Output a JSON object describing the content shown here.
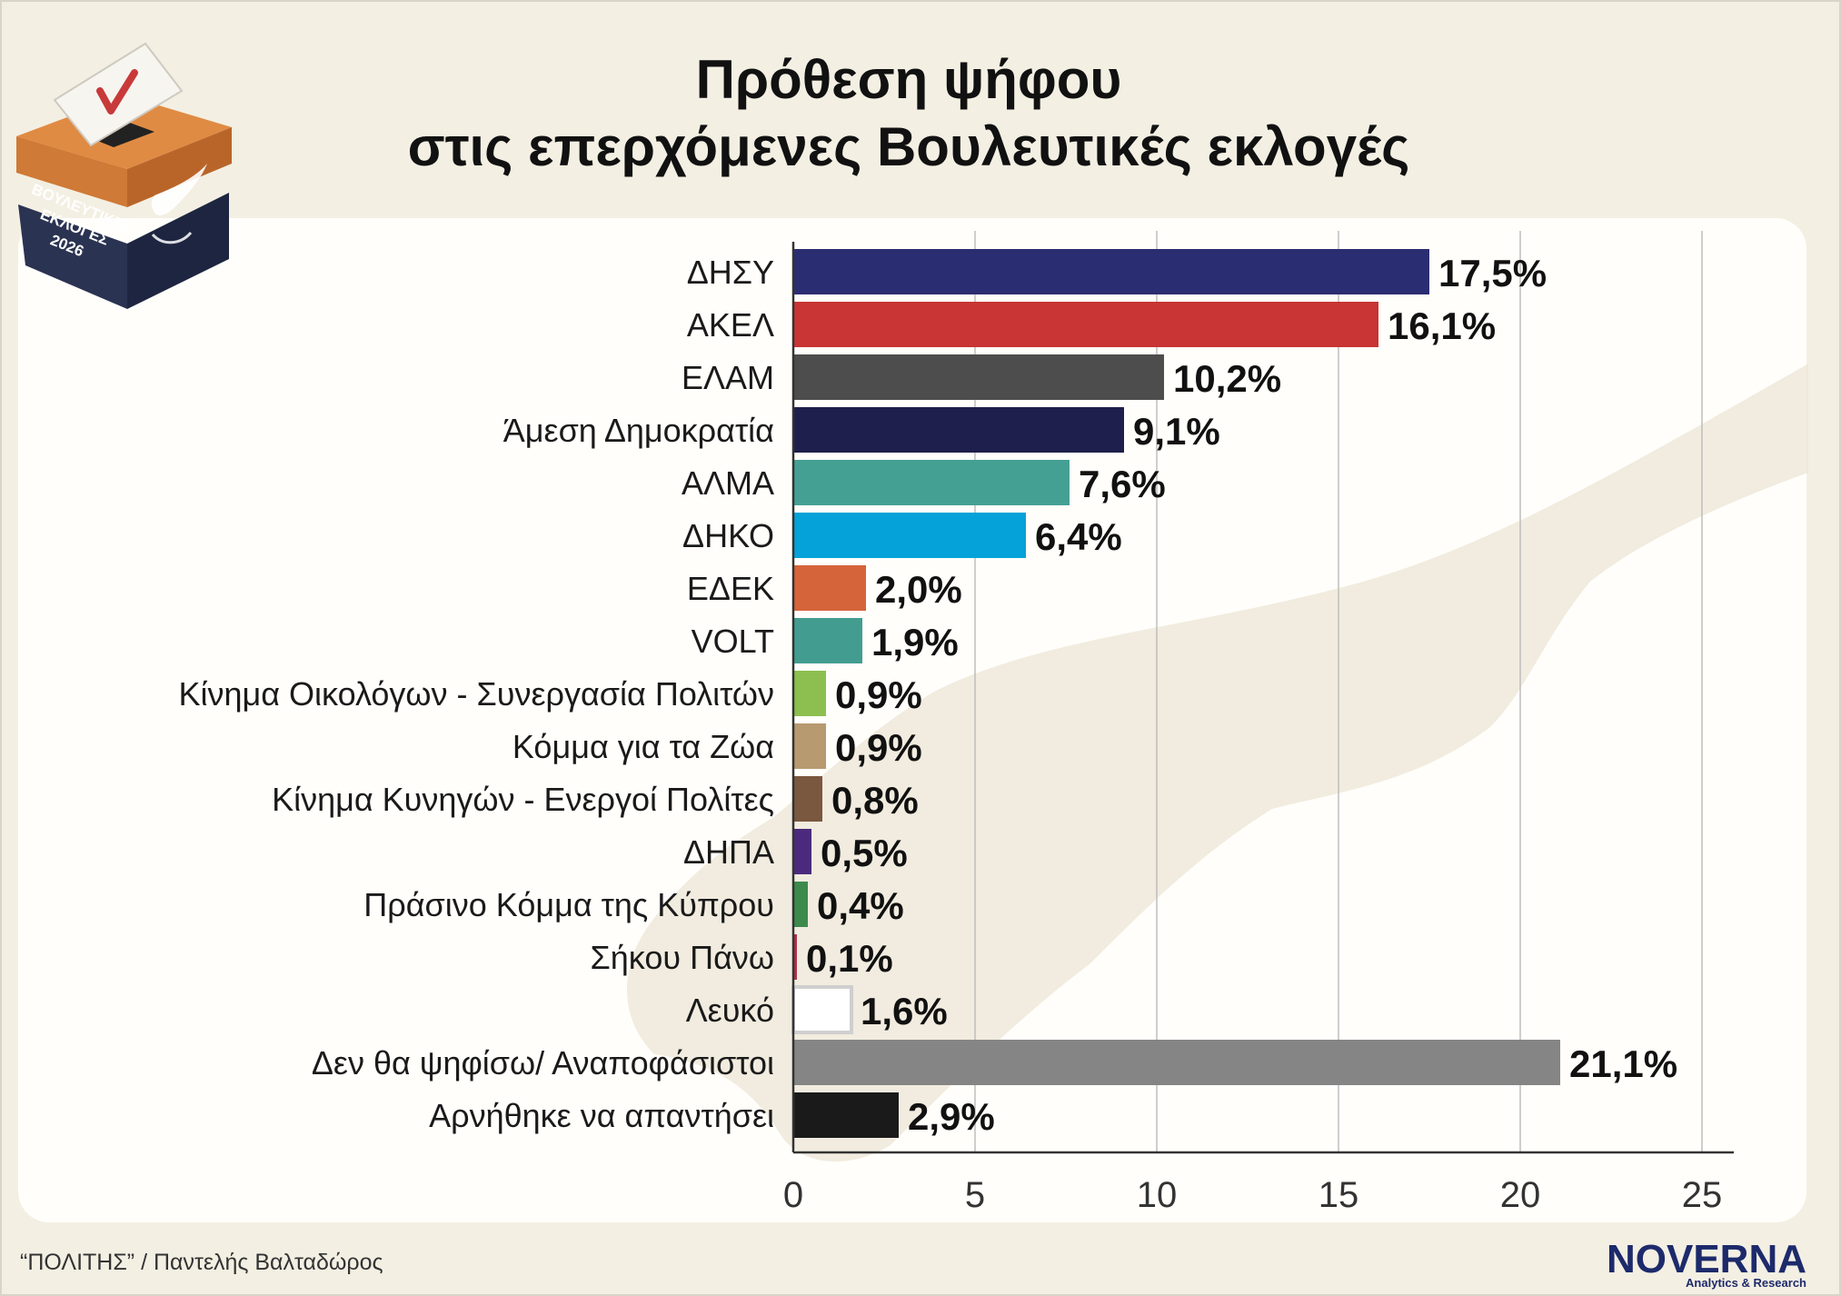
{
  "title_line1": "Πρόθεση ψήφου",
  "title_line2": "στις επερχόμενες Βουλευτικές εκλογές",
  "badge": {
    "line1": "ΒΟΥΛΕΥΤΙΚΕΣ",
    "line2": "ΕΚΛΟΓΕΣ",
    "line3": "2026"
  },
  "source": "“ΠΟΛΙΤΗΣ” / Παντελής Βαλταδώρος",
  "logo": {
    "name": "NOVERNA",
    "tagline": "Analytics & Research"
  },
  "chart_data": {
    "type": "bar",
    "orientation": "horizontal",
    "categories": [
      "ΔΗΣΥ",
      "ΑΚΕΛ",
      "ΕΛΑΜ",
      "Άμεση Δημοκρατία",
      "ΑΛΜΑ",
      "ΔΗΚΟ",
      "ΕΔΕΚ",
      "VOLT",
      "Κίνημα Οικολόγων - Συνεργασία Πολιτών",
      "Κόμμα για τα Ζώα",
      "Κίνημα Κυνηγών - Ενεργοί Πολίτες",
      "ΔΗΠΑ",
      "Πράσινο Κόμμα της Κύπρου",
      "Σήκου Πάνω",
      "Λευκό",
      "Δεν θα ψηφίσω/ Αναποφάσιστοι",
      "Αρνήθηκε να απαντήσει"
    ],
    "values": [
      17.5,
      16.1,
      10.2,
      9.1,
      7.6,
      6.4,
      2.0,
      1.9,
      0.9,
      0.9,
      0.8,
      0.5,
      0.4,
      0.1,
      1.6,
      21.1,
      2.9
    ],
    "value_labels": [
      "17,5%",
      "16,1%",
      "10,2%",
      "9,1%",
      "7,6%",
      "6,4%",
      "2,0%",
      "1,9%",
      "0,9%",
      "0,9%",
      "0,8%",
      "0,5%",
      "0,4%",
      "0,1%",
      "1,6%",
      "21,1%",
      "2,9%"
    ],
    "colors": [
      "#2b2d72",
      "#c93434",
      "#4d4d4d",
      "#1f1f4d",
      "#45a094",
      "#04a2d8",
      "#d6643a",
      "#439c90",
      "#8cbf4f",
      "#b89a70",
      "#7a573f",
      "#4b2a7d",
      "#3d8a4c",
      "#b03048",
      "#ffffff",
      "#858585",
      "#1a1a1a"
    ],
    "xlim": [
      0,
      25
    ],
    "ticks": [
      0,
      5,
      10,
      15,
      20,
      25
    ],
    "tick_labels": [
      "0",
      "5",
      "10",
      "15",
      "20",
      "25"
    ],
    "grid": true
  }
}
